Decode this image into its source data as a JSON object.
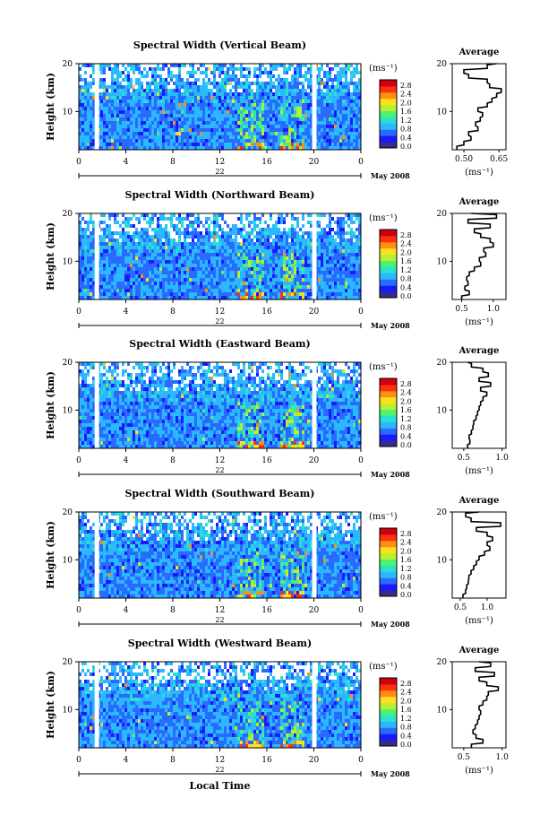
{
  "figure": {
    "xlabel": "Local Time",
    "date_label": "May 2008",
    "day_label": "22"
  },
  "colorbar": {
    "unit": "(ms⁻¹)",
    "ticks": [
      "2.8",
      "2.4",
      "2.0",
      "1.6",
      "1.2",
      "0.8",
      "0.4",
      "0.0"
    ],
    "colors": [
      "#3a2a8a",
      "#1a1aff",
      "#2a6aff",
      "#2ab8ff",
      "#2ae0d0",
      "#50f070",
      "#b8f030",
      "#ffe020",
      "#ff9010",
      "#ff3010",
      "#d00010"
    ]
  },
  "chart_data": [
    {
      "type": "heatmap",
      "title": "Spectral Width (Vertical Beam)",
      "ylabel": "Height (km)",
      "xticks": [
        "0",
        "4",
        "8",
        "12",
        "16",
        "20",
        "0"
      ],
      "yticks": [
        "20",
        "10"
      ],
      "xlim": [
        0,
        24
      ],
      "ylim": [
        2,
        20
      ],
      "gaps_hours": [
        1.5,
        20.0
      ],
      "profile": {
        "title": "Average",
        "xlabel": "(ms⁻¹)",
        "xticks": [
          "0.50",
          "0.65"
        ],
        "xlim": [
          0.45,
          0.68
        ],
        "yticks": [
          "20",
          "10"
        ],
        "heights": [
          2,
          3,
          4,
          5,
          6,
          7,
          8,
          9,
          10,
          11,
          12,
          13,
          14,
          15,
          16,
          17,
          18,
          19,
          20
        ],
        "values": [
          0.47,
          0.5,
          0.53,
          0.52,
          0.56,
          0.55,
          0.57,
          0.58,
          0.56,
          0.6,
          0.62,
          0.64,
          0.66,
          0.61,
          0.6,
          0.52,
          0.5,
          0.6,
          0.64
        ]
      }
    },
    {
      "type": "heatmap",
      "title": "Spectral Width (Northward Beam)",
      "ylabel": "Height (km)",
      "xticks": [
        "0",
        "4",
        "8",
        "12",
        "16",
        "20",
        "0"
      ],
      "yticks": [
        "20",
        "10"
      ],
      "xlim": [
        0,
        24
      ],
      "ylim": [
        2,
        20
      ],
      "gaps_hours": [
        1.5,
        20.0
      ],
      "profile": {
        "title": "Average",
        "xlabel": "(ms⁻¹)",
        "xticks": [
          "0.5",
          "1.0"
        ],
        "xlim": [
          0.35,
          1.2
        ],
        "yticks": [
          "20",
          "10"
        ],
        "heights": [
          2,
          3,
          4,
          5,
          6,
          7,
          8,
          9,
          10,
          11,
          12,
          13,
          14,
          15,
          16,
          17,
          18,
          19,
          20
        ],
        "values": [
          0.5,
          0.62,
          0.55,
          0.6,
          0.58,
          0.62,
          0.7,
          0.8,
          0.78,
          0.88,
          0.85,
          1.0,
          0.95,
          0.8,
          0.7,
          0.95,
          0.6,
          1.05,
          0.65
        ]
      }
    },
    {
      "type": "heatmap",
      "title": "Spectral Width (Eastward Beam)",
      "ylabel": "Height (km)",
      "xticks": [
        "0",
        "4",
        "8",
        "12",
        "16",
        "20",
        "0"
      ],
      "yticks": [
        "20",
        "10"
      ],
      "xlim": [
        0,
        24
      ],
      "ylim": [
        2,
        20
      ],
      "gaps_hours": [
        1.5,
        20.0
      ],
      "profile": {
        "title": "Average",
        "xlabel": "(ms⁻¹)",
        "xticks": [
          "0.5",
          "1.0"
        ],
        "xlim": [
          0.35,
          1.05
        ],
        "yticks": [
          "20",
          "10"
        ],
        "heights": [
          2,
          3,
          4,
          5,
          6,
          7,
          8,
          9,
          10,
          11,
          12,
          13,
          14,
          15,
          16,
          17,
          18,
          19,
          20
        ],
        "values": [
          0.55,
          0.58,
          0.57,
          0.6,
          0.62,
          0.63,
          0.66,
          0.68,
          0.7,
          0.72,
          0.75,
          0.8,
          0.72,
          0.85,
          0.7,
          0.82,
          0.75,
          0.6,
          0.55
        ]
      }
    },
    {
      "type": "heatmap",
      "title": "Spectral Width (Southward Beam)",
      "ylabel": "Height (km)",
      "xticks": [
        "0",
        "4",
        "8",
        "12",
        "16",
        "20",
        "0"
      ],
      "yticks": [
        "20",
        "10"
      ],
      "xlim": [
        0,
        24
      ],
      "ylim": [
        2,
        20
      ],
      "gaps_hours": [
        1.5,
        20.0
      ],
      "profile": {
        "title": "Average",
        "xlabel": "(ms⁻¹)",
        "xticks": [
          "0.5",
          "1.0"
        ],
        "xlim": [
          0.35,
          1.35
        ],
        "yticks": [
          "20",
          "10"
        ],
        "heights": [
          2,
          3,
          4,
          5,
          6,
          7,
          8,
          9,
          10,
          11,
          12,
          13,
          14,
          15,
          16,
          17,
          18,
          19,
          20
        ],
        "values": [
          0.55,
          0.6,
          0.62,
          0.65,
          0.66,
          0.7,
          0.75,
          0.8,
          0.85,
          0.95,
          1.05,
          1.0,
          1.1,
          1.0,
          0.8,
          1.25,
          0.7,
          0.6,
          0.85
        ]
      }
    },
    {
      "type": "heatmap",
      "title": "Spectral Width (Westward Beam)",
      "ylabel": "Height (km)",
      "xticks": [
        "0",
        "4",
        "8",
        "12",
        "16",
        "20",
        "0"
      ],
      "yticks": [
        "20",
        "10"
      ],
      "xlim": [
        0,
        24
      ],
      "ylim": [
        2,
        20
      ],
      "gaps_hours": [
        1.5,
        20.0
      ],
      "profile": {
        "title": "Average",
        "xlabel": "(ms⁻¹)",
        "xticks": [
          "0.5",
          "1.0"
        ],
        "xlim": [
          0.35,
          1.05
        ],
        "yticks": [
          "20",
          "10"
        ],
        "heights": [
          2,
          3,
          4,
          5,
          6,
          7,
          8,
          9,
          10,
          11,
          12,
          13,
          14,
          15,
          16,
          17,
          18,
          19,
          20
        ],
        "values": [
          0.6,
          0.75,
          0.66,
          0.62,
          0.65,
          0.68,
          0.7,
          0.72,
          0.7,
          0.75,
          0.8,
          0.82,
          0.95,
          0.8,
          0.7,
          0.9,
          0.65,
          0.85,
          0.7
        ]
      }
    }
  ]
}
